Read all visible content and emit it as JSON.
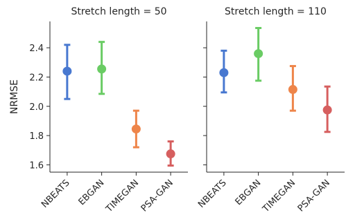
{
  "chart_data": [
    {
      "type": "scatter",
      "title": "Stretch length = 50",
      "ylabel": "NRMSE",
      "ylim": [
        1.55,
        2.58
      ],
      "yticks": [
        1.6,
        1.8,
        2.0,
        2.2,
        2.4
      ],
      "categories": [
        "NBEATS",
        "EBGAN",
        "TIMEGAN",
        "PSA-GAN"
      ],
      "values": [
        2.24,
        2.255,
        1.845,
        1.675
      ],
      "errors": [
        [
          2.05,
          2.42
        ],
        [
          2.085,
          2.44
        ],
        [
          1.72,
          1.97
        ],
        [
          1.595,
          1.76
        ]
      ],
      "colors": [
        "#4878d0",
        "#6acc64",
        "#ee854a",
        "#d65f5f"
      ]
    },
    {
      "type": "scatter",
      "title": "Stretch length = 110",
      "ylabel": "",
      "ylim": [
        1.55,
        2.58
      ],
      "yticks": [
        1.6,
        1.8,
        2.0,
        2.2,
        2.4
      ],
      "categories": [
        "NBEATS",
        "EBGAN",
        "TIMEGAN",
        "PSA-GAN"
      ],
      "values": [
        2.23,
        2.36,
        2.115,
        1.975
      ],
      "errors": [
        [
          2.095,
          2.38
        ],
        [
          2.175,
          2.535
        ],
        [
          1.97,
          2.275
        ],
        [
          1.825,
          2.135
        ]
      ],
      "colors": [
        "#4878d0",
        "#6acc64",
        "#ee854a",
        "#d65f5f"
      ]
    }
  ]
}
